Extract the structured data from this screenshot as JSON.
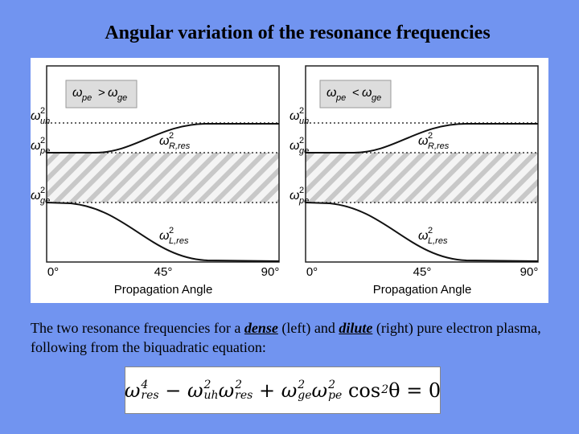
{
  "title": "Angular variation of the resonance frequencies",
  "panels": [
    {
      "condition": {
        "left": {
          "base": "ω",
          "sub": "pe"
        },
        "op": ">",
        "right": {
          "base": "ω",
          "sub": "ge"
        }
      },
      "levels": [
        {
          "base": "ω",
          "sup": "2",
          "sub": "uh"
        },
        {
          "base": "ω",
          "sup": "2",
          "sub": "pe"
        },
        {
          "base": "ω",
          "sup": "2",
          "sub": "ge"
        }
      ],
      "curves": [
        {
          "base": "ω",
          "sup": "2",
          "sub": "R,res"
        },
        {
          "base": "ω",
          "sup": "2",
          "sub": "L,res"
        }
      ],
      "x_ticks": [
        "0°",
        "45°",
        "90°"
      ],
      "x_label": "Propagation Angle"
    },
    {
      "condition": {
        "left": {
          "base": "ω",
          "sub": "pe"
        },
        "op": "<",
        "right": {
          "base": "ω",
          "sub": "ge"
        }
      },
      "levels": [
        {
          "base": "ω",
          "sup": "2",
          "sub": "uh"
        },
        {
          "base": "ω",
          "sup": "2",
          "sub": "ge"
        },
        {
          "base": "ω",
          "sup": "2",
          "sub": "pe"
        }
      ],
      "curves": [
        {
          "base": "ω",
          "sup": "2",
          "sub": "R,res"
        },
        {
          "base": "ω",
          "sup": "2",
          "sub": "L,res"
        }
      ],
      "x_ticks": [
        "0°",
        "45°",
        "90°"
      ],
      "x_label": "Propagation Angle"
    }
  ],
  "caption": [
    "The two resonance frequencies for a ",
    "dense",
    " (left) and ",
    "dilute",
    " (right) pure electron plasma, following from the biquadratic equation:"
  ],
  "equation": [
    {
      "base": "ω",
      "sup": "4",
      "sub": "res"
    },
    {
      "op": " − "
    },
    {
      "base": "ω",
      "sup": "2",
      "sub": "uh"
    },
    {
      "base": "ω",
      "sup": "2",
      "sub": "res"
    },
    {
      "op": " + "
    },
    {
      "base": "ω",
      "sup": "2",
      "sub": "ge"
    },
    {
      "base": "ω",
      "sup": "2",
      "sub": "pe"
    },
    {
      "base": " cos",
      "sup": "2",
      "sub": ""
    },
    {
      "op": "θ = 0"
    }
  ]
}
